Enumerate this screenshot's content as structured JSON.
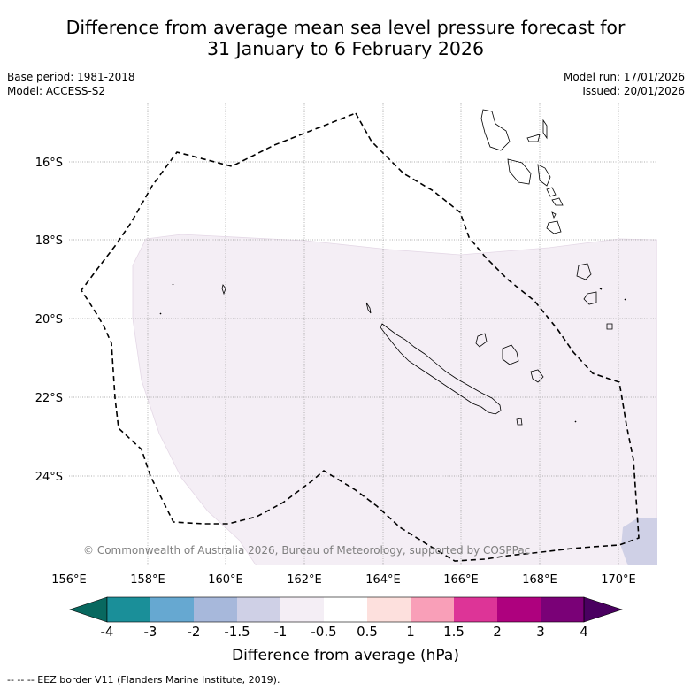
{
  "title": {
    "line1": "Difference from average mean sea level pressure forecast for",
    "line2": "31 January to 6 February 2026"
  },
  "meta": {
    "base_period": "Base period: 1981-2018",
    "model": "Model: ACCESS-S2",
    "model_run": "Model run: 17/01/2026",
    "issued": "Issued: 20/01/2026"
  },
  "map": {
    "extent": {
      "lon_min": 156,
      "lon_max": 171,
      "lat_top": -14.2,
      "lat_bottom": -26
    },
    "lon_ticks": [
      156,
      158,
      160,
      162,
      164,
      166,
      168,
      170
    ],
    "lon_tick_labels": [
      "156°E",
      "158°E",
      "160°E",
      "162°E",
      "164°E",
      "166°E",
      "168°E",
      "170°E"
    ],
    "lat_ticks": [
      -16,
      -18,
      -20,
      -22,
      -24
    ],
    "lat_tick_labels": [
      "16°S",
      "18°S",
      "20°S",
      "22°S",
      "24°S"
    ],
    "copyright": "© Commonwealth of Australia 2026, Bureau of Meteorology, supported by COSPPac",
    "colors": {
      "anomaly_light_purple": "#f4eef5",
      "anomaly_lavender": "#cfd0e6",
      "eez_border": "#000000",
      "coast": "#000000",
      "grid": "#999999"
    }
  },
  "colorbar": {
    "title": "Difference from average (hPa)",
    "labels": [
      "-4",
      "-3",
      "-2",
      "-1.5",
      "-1",
      "-0.5",
      "0.5",
      "1",
      "1.5",
      "2",
      "3",
      "4"
    ],
    "bins": [
      {
        "from": "-4",
        "to": "-3",
        "color": "#1a8f99"
      },
      {
        "from": "-3",
        "to": "-2",
        "color": "#66a8d1"
      },
      {
        "from": "-2",
        "to": "-1.5",
        "color": "#a7b8db"
      },
      {
        "from": "-1.5",
        "to": "-1",
        "color": "#cfd0e6"
      },
      {
        "from": "-1",
        "to": "-0.5",
        "color": "#f4eef5"
      },
      {
        "from": "-0.5",
        "to": "0.5",
        "color": "#ffffff"
      },
      {
        "from": "0.5",
        "to": "1",
        "color": "#fde0dd"
      },
      {
        "from": "1",
        "to": "1.5",
        "color": "#f99fb8"
      },
      {
        "from": "1.5",
        "to": "2",
        "color": "#dd3497"
      },
      {
        "from": "2",
        "to": "3",
        "color": "#ae017e"
      },
      {
        "from": "3",
        "to": "4",
        "color": "#7a0177"
      }
    ],
    "under_color": "#08685f",
    "over_color": "#4a0060"
  },
  "footnote": "-- -- -- EEZ border V11 (Flanders Marine Institute, 2019)."
}
